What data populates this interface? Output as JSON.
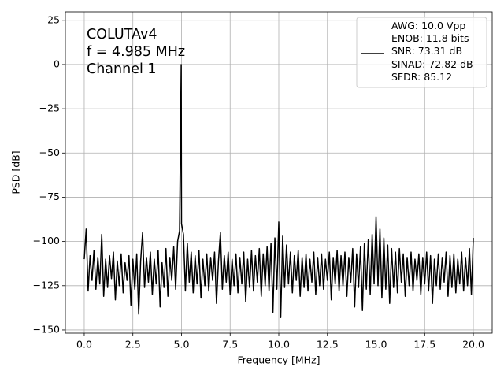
{
  "chart_data": {
    "type": "line",
    "xlabel": "Frequency [MHz]",
    "ylabel": "PSD [dB]",
    "annotations": [
      "COLUTAv4",
      "f = 4.985 MHz",
      "Channel 1"
    ],
    "grid": true,
    "legend": "upper right",
    "xlim": [
      -0.97,
      20.97
    ],
    "ylim": [
      -151.8,
      29.8
    ],
    "xticks": [
      {
        "value": 0,
        "label": "0.0"
      },
      {
        "value": 2.5,
        "label": "2.5"
      },
      {
        "value": 5,
        "label": "5.0"
      },
      {
        "value": 7.5,
        "label": "7.5"
      },
      {
        "value": 10,
        "label": "10.0"
      },
      {
        "value": 12.5,
        "label": "12.5"
      },
      {
        "value": 15,
        "label": "15.0"
      },
      {
        "value": 17.5,
        "label": "17.5"
      },
      {
        "value": 20,
        "label": "20.0"
      }
    ],
    "yticks": [
      25,
      0,
      {
        "value": -25,
        "label": "−25"
      },
      {
        "value": -50,
        "label": "−50"
      },
      {
        "value": -75,
        "label": "−75"
      },
      {
        "value": -100,
        "label": "−100"
      },
      {
        "value": -125,
        "label": "−125"
      },
      {
        "value": -150,
        "label": "−150"
      }
    ],
    "x": [
      0.0,
      0.1,
      0.2,
      0.3,
      0.4,
      0.5,
      0.6,
      0.7,
      0.8,
      0.9,
      1.0,
      1.1,
      1.2,
      1.3,
      1.4,
      1.5,
      1.6,
      1.7,
      1.8,
      1.9,
      2.0,
      2.1,
      2.2,
      2.3,
      2.4,
      2.5,
      2.6,
      2.7,
      2.8,
      2.9,
      3.0,
      3.1,
      3.2,
      3.3,
      3.4,
      3.5,
      3.6,
      3.7,
      3.8,
      3.9,
      4.0,
      4.1,
      4.2,
      4.3,
      4.4,
      4.5,
      4.6,
      4.7,
      4.8,
      4.9,
      4.985,
      5.0,
      5.1,
      5.2,
      5.3,
      5.4,
      5.5,
      5.6,
      5.7,
      5.8,
      5.9,
      6.0,
      6.1,
      6.2,
      6.3,
      6.4,
      6.5,
      6.6,
      6.7,
      6.8,
      6.9,
      7.0,
      7.1,
      7.2,
      7.3,
      7.4,
      7.5,
      7.6,
      7.7,
      7.8,
      7.9,
      8.0,
      8.1,
      8.2,
      8.3,
      8.4,
      8.5,
      8.6,
      8.7,
      8.8,
      8.9,
      9.0,
      9.1,
      9.2,
      9.3,
      9.4,
      9.5,
      9.6,
      9.7,
      9.8,
      9.9,
      10.0,
      10.1,
      10.2,
      10.3,
      10.4,
      10.5,
      10.6,
      10.7,
      10.8,
      10.9,
      11.0,
      11.1,
      11.2,
      11.3,
      11.4,
      11.5,
      11.6,
      11.7,
      11.8,
      11.9,
      12.0,
      12.1,
      12.2,
      12.3,
      12.4,
      12.5,
      12.6,
      12.7,
      12.8,
      12.9,
      13.0,
      13.1,
      13.2,
      13.3,
      13.4,
      13.5,
      13.6,
      13.7,
      13.8,
      13.9,
      14.0,
      14.1,
      14.2,
      14.3,
      14.4,
      14.5,
      14.6,
      14.7,
      14.8,
      14.9,
      15.0,
      15.1,
      15.2,
      15.3,
      15.4,
      15.5,
      15.6,
      15.7,
      15.8,
      15.9,
      16.0,
      16.1,
      16.2,
      16.3,
      16.4,
      16.5,
      16.6,
      16.7,
      16.8,
      16.9,
      17.0,
      17.1,
      17.2,
      17.3,
      17.4,
      17.5,
      17.6,
      17.7,
      17.8,
      17.9,
      18.0,
      18.1,
      18.2,
      18.3,
      18.4,
      18.5,
      18.6,
      18.7,
      18.8,
      18.9,
      19.0,
      19.1,
      19.2,
      19.3,
      19.4,
      19.5,
      19.6,
      19.7,
      19.8,
      19.9,
      20.0
    ],
    "series": [
      {
        "name": "AWG: 10.0 Vpp\nENOB: 11.8 bits\nSNR: 73.31 dB\nSINAD: 72.82 dB\nSFDR: 85.12",
        "color": "#000000",
        "values": [
          -110,
          -93,
          -128,
          -108,
          -122,
          -105,
          -127,
          -109,
          -124,
          -96,
          -131,
          -110,
          -126,
          -108,
          -121,
          -106,
          -133,
          -111,
          -125,
          -107,
          -129,
          -112,
          -122,
          -108,
          -136,
          -110,
          -127,
          -107,
          -141,
          -111,
          -95,
          -126,
          -109,
          -123,
          -106,
          -130,
          -110,
          -124,
          -105,
          -137,
          -112,
          -126,
          -104,
          -131,
          -109,
          -122,
          -103,
          -127,
          -100,
          -94,
          0,
          -90,
          -96,
          -128,
          -101,
          -123,
          -106,
          -129,
          -108,
          -124,
          -105,
          -132,
          -110,
          -125,
          -107,
          -128,
          -109,
          -122,
          -106,
          -135,
          -111,
          -95,
          -127,
          -108,
          -123,
          -106,
          -130,
          -110,
          -125,
          -107,
          -129,
          -109,
          -124,
          -106,
          -134,
          -110,
          -126,
          -105,
          -128,
          -108,
          -123,
          -104,
          -131,
          -107,
          -125,
          -103,
          -128,
          -101,
          -140,
          -98,
          -127,
          -89,
          -143,
          -97,
          -126,
          -102,
          -124,
          -106,
          -129,
          -108,
          -122,
          -105,
          -131,
          -109,
          -126,
          -107,
          -128,
          -110,
          -123,
          -106,
          -130,
          -109,
          -125,
          -107,
          -127,
          -110,
          -122,
          -106,
          -133,
          -109,
          -124,
          -105,
          -128,
          -108,
          -125,
          -106,
          -131,
          -109,
          -123,
          -104,
          -137,
          -107,
          -126,
          -103,
          -139,
          -101,
          -127,
          -99,
          -130,
          -96,
          -124,
          -86,
          -125,
          -93,
          -132,
          -98,
          -127,
          -102,
          -135,
          -104,
          -126,
          -106,
          -129,
          -104,
          -123,
          -107,
          -131,
          -109,
          -125,
          -106,
          -128,
          -110,
          -122,
          -107,
          -130,
          -109,
          -124,
          -106,
          -128,
          -108,
          -135,
          -110,
          -125,
          -107,
          -127,
          -109,
          -123,
          -106,
          -131,
          -108,
          -126,
          -107,
          -129,
          -110,
          -124,
          -106,
          -128,
          -109,
          -125,
          -104,
          -130,
          -98
        ]
      }
    ]
  }
}
